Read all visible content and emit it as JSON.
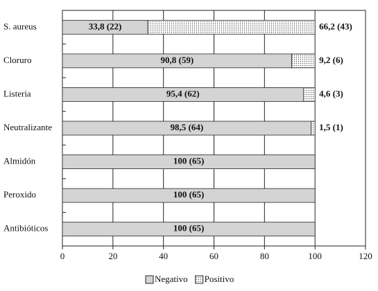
{
  "chart_data": {
    "type": "hbar-stacked",
    "categories": [
      "S. aureus",
      "Cloruro",
      "Listeria",
      "Neutralizante",
      "Almidón",
      "Peroxido",
      "Antibióticos"
    ],
    "series": [
      {
        "name": "Negativo",
        "color": "#d4d4d4",
        "fill_style": "solid",
        "values": [
          33.8,
          90.8,
          95.4,
          98.5,
          100,
          100,
          100
        ],
        "value_labels": [
          "33,8 (22)",
          "90,8 (59)",
          "95,4 (62)",
          "98,5 (64)",
          "100 (65)",
          "100 (65)",
          "100 (65)"
        ]
      },
      {
        "name": "Positivo",
        "color": "#ffffff",
        "fill_style": "dots",
        "values": [
          66.2,
          9.2,
          4.6,
          1.5,
          0,
          0,
          0
        ],
        "value_labels": [
          "66,2 (43)",
          "9,2 (6)",
          "4,6 (3)",
          "1,5 (1)",
          null,
          null,
          null
        ]
      }
    ],
    "xlim": [
      0,
      120
    ],
    "xticks": [
      0,
      20,
      40,
      60,
      80,
      100,
      120
    ],
    "grid": true,
    "legend": "bottom"
  }
}
